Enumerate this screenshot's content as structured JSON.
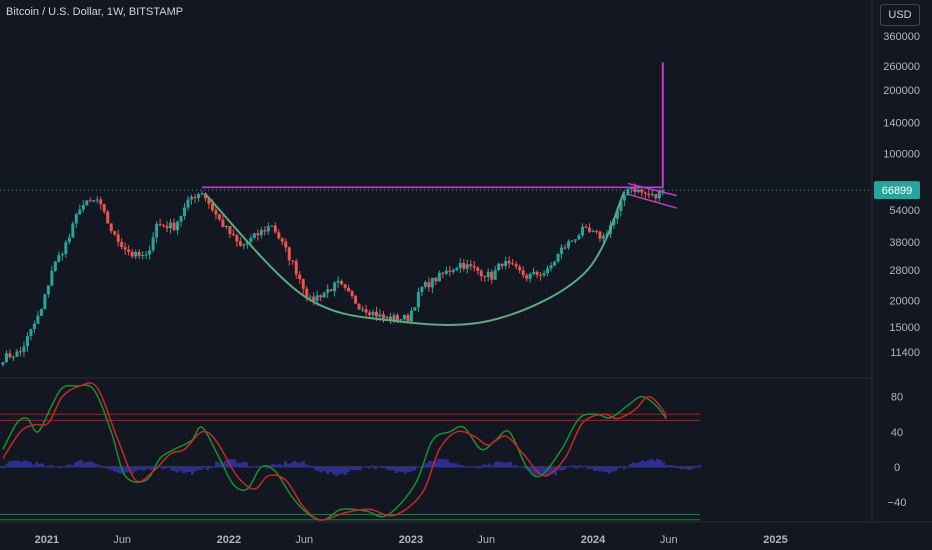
{
  "header": {
    "title": "Bitcoin / U.S. Dollar, 1W, BITSTAMP",
    "currency_button": "USD"
  },
  "colors": {
    "up": "#26a69a",
    "down": "#ef5350",
    "purple": "#c93bcd",
    "cup": "#5fa87f",
    "osc_green": "#1b8f2e",
    "osc_red": "#c62828",
    "histogram": "#2d2f8f",
    "bands": "#b71c1c",
    "bands_low": "#1b7f3a",
    "current_price_bg": "#26a69a"
  },
  "chart_data": [
    {
      "type": "candlestick",
      "title": "Bitcoin / U.S. Dollar, 1W, BITSTAMP",
      "y_scale": "log",
      "ylim": [
        10000,
        400000
      ],
      "y_ticks": [
        360000,
        260000,
        200000,
        140000,
        100000,
        54000,
        38000,
        28000,
        20000,
        15000,
        11400
      ],
      "x_ticks": [
        "2021",
        "Jun",
        "2022",
        "Jun",
        "2023",
        "Jun",
        "2024",
        "Jun",
        "2025"
      ],
      "current_price": 66899,
      "anchors": [
        {
          "date": "2020-10-05",
          "price": 10700
        },
        {
          "date": "2020-11-09",
          "price": 11400
        },
        {
          "date": "2020-12-21",
          "price": 18000
        },
        {
          "date": "2021-01-11",
          "price": 28000
        },
        {
          "date": "2021-02-15",
          "price": 40000
        },
        {
          "date": "2021-03-08",
          "price": 56000
        },
        {
          "date": "2021-04-12",
          "price": 60000
        },
        {
          "date": "2021-05-17",
          "price": 40000
        },
        {
          "date": "2021-06-21",
          "price": 33000
        },
        {
          "date": "2021-07-19",
          "price": 32000
        },
        {
          "date": "2021-08-09",
          "price": 46000
        },
        {
          "date": "2021-09-13",
          "price": 45000
        },
        {
          "date": "2021-10-18",
          "price": 62000
        },
        {
          "date": "2021-11-08",
          "price": 66000
        },
        {
          "date": "2021-12-13",
          "price": 48000
        },
        {
          "date": "2022-01-24",
          "price": 36000
        },
        {
          "date": "2022-03-28",
          "price": 46000
        },
        {
          "date": "2022-05-09",
          "price": 30000
        },
        {
          "date": "2022-06-13",
          "price": 20000
        },
        {
          "date": "2022-08-08",
          "price": 24000
        },
        {
          "date": "2022-09-19",
          "price": 19000
        },
        {
          "date": "2022-11-07",
          "price": 16500
        },
        {
          "date": "2022-12-26",
          "price": 16500
        },
        {
          "date": "2023-01-23",
          "price": 23000
        },
        {
          "date": "2023-03-20",
          "price": 28000
        },
        {
          "date": "2023-04-10",
          "price": 30000
        },
        {
          "date": "2023-06-12",
          "price": 26000
        },
        {
          "date": "2023-07-03",
          "price": 30500
        },
        {
          "date": "2023-08-21",
          "price": 26000
        },
        {
          "date": "2023-10-02",
          "price": 27500
        },
        {
          "date": "2023-10-30",
          "price": 35000
        },
        {
          "date": "2023-12-11",
          "price": 43000
        },
        {
          "date": "2024-01-22",
          "price": 40000
        },
        {
          "date": "2024-02-19",
          "price": 52000
        },
        {
          "date": "2024-03-11",
          "price": 70000
        },
        {
          "date": "2024-04-15",
          "price": 64000
        },
        {
          "date": "2024-05-06",
          "price": 62000
        },
        {
          "date": "2024-05-20",
          "price": 66899
        }
      ],
      "annotations": [
        {
          "type": "resistance_line",
          "price": 69000,
          "from": "2021-11-08",
          "to": "2024-05-20"
        },
        {
          "type": "cup_curve",
          "points": [
            [
              "2021-11-15",
              64000
            ],
            [
              "2022-06-01",
              21000
            ],
            [
              "2022-12-01",
              16000
            ],
            [
              "2023-06-15",
              16200
            ],
            [
              "2023-12-15",
              27000
            ],
            [
              "2024-03-04",
              66000
            ]
          ]
        },
        {
          "type": "target_line",
          "date": "2024-05-20",
          "from_price": 69000,
          "to_price": 270000
        },
        {
          "type": "channel_upper",
          "from": [
            "2024-03-11",
            72000
          ],
          "to": [
            "2024-06-17",
            63000
          ]
        },
        {
          "type": "channel_lower",
          "from": [
            "2024-03-11",
            64000
          ],
          "to": [
            "2024-06-17",
            55000
          ]
        }
      ]
    },
    {
      "type": "line",
      "ylim": [
        -60,
        100
      ],
      "y_ticks": [
        80,
        40,
        0,
        -40
      ],
      "bands": [
        {
          "value": 60
        },
        {
          "value": 53
        },
        {
          "value": -54
        },
        {
          "value": -60
        }
      ],
      "series": [
        {
          "color": "green",
          "points": [
            [
              "2020-10-05",
              20
            ],
            [
              "2020-11-02",
              50
            ],
            [
              "2020-11-23",
              55
            ],
            [
              "2020-12-14",
              40
            ],
            [
              "2021-01-11",
              70
            ],
            [
              "2021-02-01",
              90
            ],
            [
              "2021-03-01",
              92
            ],
            [
              "2021-04-05",
              88
            ],
            [
              "2021-05-10",
              40
            ],
            [
              "2021-06-07",
              -10
            ],
            [
              "2021-07-19",
              -15
            ],
            [
              "2021-08-16",
              10
            ],
            [
              "2021-09-13",
              20
            ],
            [
              "2021-10-18",
              30
            ],
            [
              "2021-11-08",
              45
            ],
            [
              "2021-12-13",
              10
            ],
            [
              "2022-01-10",
              -20
            ],
            [
              "2022-02-07",
              -25
            ],
            [
              "2022-03-07",
              0
            ],
            [
              "2022-04-04",
              -5
            ],
            [
              "2022-05-09",
              -35
            ],
            [
              "2022-06-13",
              -55
            ],
            [
              "2022-07-11",
              -60
            ],
            [
              "2022-08-15",
              -48
            ],
            [
              "2022-10-03",
              -50
            ],
            [
              "2022-11-14",
              -55
            ],
            [
              "2023-01-09",
              -20
            ],
            [
              "2023-02-13",
              30
            ],
            [
              "2023-03-20",
              40
            ],
            [
              "2023-04-17",
              45
            ],
            [
              "2023-05-22",
              20
            ],
            [
              "2023-06-19",
              30
            ],
            [
              "2023-07-17",
              40
            ],
            [
              "2023-08-21",
              0
            ],
            [
              "2023-09-18",
              -10
            ],
            [
              "2023-10-30",
              20
            ],
            [
              "2023-12-04",
              55
            ],
            [
              "2024-01-08",
              60
            ],
            [
              "2024-02-05",
              56
            ],
            [
              "2024-03-11",
              70
            ],
            [
              "2024-04-08",
              80
            ],
            [
              "2024-05-06",
              70
            ],
            [
              "2024-05-27",
              55
            ]
          ]
        },
        {
          "color": "red",
          "points": [
            [
              "2020-10-05",
              10
            ],
            [
              "2020-11-09",
              40
            ],
            [
              "2020-12-07",
              48
            ],
            [
              "2021-01-04",
              50
            ],
            [
              "2021-02-01",
              80
            ],
            [
              "2021-03-08",
              92
            ],
            [
              "2021-04-12",
              90
            ],
            [
              "2021-05-24",
              30
            ],
            [
              "2021-06-28",
              -15
            ],
            [
              "2021-08-02",
              -5
            ],
            [
              "2021-09-06",
              15
            ],
            [
              "2021-10-04",
              20
            ],
            [
              "2021-11-08",
              40
            ],
            [
              "2021-12-06",
              30
            ],
            [
              "2022-01-17",
              -10
            ],
            [
              "2022-02-21",
              -25
            ],
            [
              "2022-03-21",
              -10
            ],
            [
              "2022-04-25",
              -15
            ],
            [
              "2022-05-30",
              -45
            ],
            [
              "2022-07-04",
              -60
            ],
            [
              "2022-08-22",
              -52
            ],
            [
              "2022-10-10",
              -48
            ],
            [
              "2022-11-28",
              -55
            ],
            [
              "2023-01-23",
              -30
            ],
            [
              "2023-02-27",
              20
            ],
            [
              "2023-04-03",
              40
            ],
            [
              "2023-05-08",
              35
            ],
            [
              "2023-06-05",
              25
            ],
            [
              "2023-07-10",
              35
            ],
            [
              "2023-08-14",
              15
            ],
            [
              "2023-09-25",
              -10
            ],
            [
              "2023-11-06",
              10
            ],
            [
              "2023-12-11",
              50
            ],
            [
              "2024-01-22",
              60
            ],
            [
              "2024-02-19",
              55
            ],
            [
              "2024-03-25",
              65
            ],
            [
              "2024-04-22",
              80
            ],
            [
              "2024-05-20",
              65
            ],
            [
              "2024-05-27",
              55
            ]
          ]
        }
      ]
    }
  ]
}
